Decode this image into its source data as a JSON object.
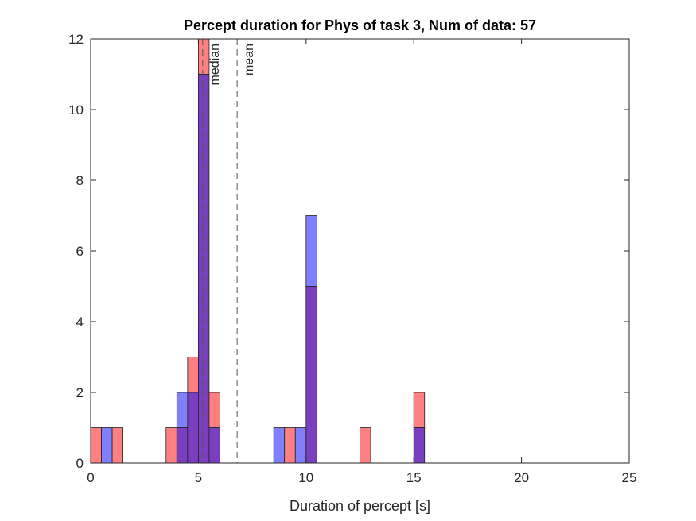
{
  "chart_data": {
    "type": "bar",
    "title": "Percept duration for Phys of task 3, Num of data: 57",
    "xlabel": "Duration of percept [s]",
    "ylabel": "",
    "xlim": [
      0,
      25
    ],
    "ylim": [
      0,
      12
    ],
    "xticks": [
      "0",
      "5",
      "10",
      "15",
      "20",
      "25"
    ],
    "yticks": [
      "0",
      "2",
      "4",
      "6",
      "8",
      "10",
      "12"
    ],
    "bin_width": 0.5,
    "grid": false,
    "legend": "none",
    "colors": {
      "red": "#ff8080",
      "blue": "#8080ff",
      "overlap": "#7a3fbf"
    },
    "series": [
      {
        "color": "red",
        "bin_centers": [
          0.25,
          1.25,
          3.75,
          4.25,
          4.75,
          5.25,
          5.75,
          9.25,
          10.25,
          12.75,
          15.25
        ],
        "values": [
          1,
          1,
          1,
          1,
          3,
          12,
          2,
          1,
          5,
          1,
          2
        ]
      },
      {
        "color": "blue",
        "bin_centers": [
          0.75,
          4.25,
          4.75,
          5.25,
          5.75,
          8.75,
          9.75,
          10.25,
          15.25
        ],
        "values": [
          1,
          2,
          2,
          11,
          1,
          1,
          1,
          7,
          1
        ]
      }
    ],
    "vlines": [
      {
        "label": "median",
        "x": 5.2
      },
      {
        "label": "mean",
        "x": 6.8
      }
    ]
  }
}
